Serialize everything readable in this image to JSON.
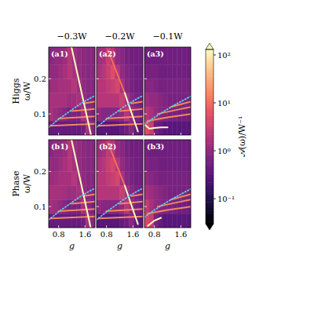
{
  "chart_data": [
    {
      "type": "heatmap",
      "label": "(a1)",
      "title": "−0.3W",
      "row_label": "Higgs",
      "ylabel": "ω/W",
      "tick_labels": "y",
      "xlim": [
        0.5,
        1.9
      ],
      "ylim": [
        0.04,
        0.29
      ],
      "xticks": [
        0.8,
        1.6
      ],
      "yticks": [
        0.1,
        0.2
      ],
      "x_edges": [
        0.5,
        0.64,
        0.78,
        0.92,
        1.06,
        1.2,
        1.34,
        1.48,
        1.62,
        1.76,
        1.9
      ],
      "y_edges": [
        0.04,
        0.08,
        0.12,
        0.16,
        0.2,
        0.24,
        0.29
      ],
      "cells": [
        [
          0.4,
          0.4,
          0.4,
          0.4,
          0.4,
          0.4,
          0.4,
          0.5,
          1.5,
          0.8
        ],
        [
          1.5,
          1.2,
          1,
          0.8,
          0.6,
          0.6,
          0.6,
          1.5,
          0.8,
          0.6
        ],
        [
          1.5,
          1.5,
          1.5,
          1.5,
          1.2,
          1.2,
          1.5,
          1,
          0.8,
          0.7
        ],
        [
          1.2,
          1.3,
          1.5,
          1.5,
          1.5,
          2,
          1.2,
          1,
          0.8,
          0.8
        ],
        [
          1,
          1,
          1.2,
          1.5,
          2,
          1.5,
          1,
          0.9,
          0.8,
          0.8
        ],
        [
          0.8,
          1,
          1,
          1.2,
          2,
          1.2,
          1,
          0.9,
          0.8,
          0.8
        ]
      ],
      "series": [
        {
          "type": "line",
          "color": "#f4875e",
          "x": [
            0.55,
            1.9
          ],
          "values": [
            0.066,
            0.072
          ]
        },
        {
          "type": "line",
          "color": "#f4875e",
          "x": [
            0.8,
            1.9
          ],
          "values": [
            0.087,
            0.093
          ]
        },
        {
          "type": "line",
          "color": "#f4875e",
          "x": [
            1.2,
            1.9
          ],
          "values": [
            0.108,
            0.114
          ]
        },
        {
          "type": "line",
          "color": "#f4875e",
          "x": [
            1.55,
            1.9
          ],
          "values": [
            0.13,
            0.135
          ]
        },
        {
          "type": "line",
          "color": "#fcfdbf",
          "x": [
            1.19,
            1.78
          ],
          "values": [
            0.29,
            0.04
          ]
        },
        {
          "type": "line",
          "color": "#5ad1e6",
          "line_style": "dotted",
          "x": [
            0.5,
            0.8,
            1.1,
            1.4,
            1.7,
            1.9
          ],
          "values": [
            0.062,
            0.085,
            0.105,
            0.125,
            0.142,
            0.152
          ]
        }
      ]
    },
    {
      "type": "heatmap",
      "label": "(a2)",
      "title": "−0.2W",
      "tick_labels": false,
      "xlim": [
        0.5,
        1.9
      ],
      "ylim": [
        0.04,
        0.29
      ],
      "xticks": [
        0.8,
        1.6
      ],
      "yticks": [
        0.1,
        0.2
      ],
      "x_edges": [
        0.5,
        0.64,
        0.78,
        0.92,
        1.06,
        1.2,
        1.34,
        1.48,
        1.62,
        1.76,
        1.9
      ],
      "y_edges": [
        0.04,
        0.08,
        0.12,
        0.16,
        0.2,
        0.24,
        0.29
      ],
      "cells": [
        [
          0.3,
          0.3,
          0.3,
          0.3,
          0.3,
          0.4,
          0.5,
          0.8,
          0.4,
          0.3
        ],
        [
          1,
          0.8,
          0.8,
          0.8,
          0.8,
          1,
          2,
          1,
          0.6,
          0.5
        ],
        [
          2,
          2,
          2,
          2,
          2,
          3,
          1.5,
          0.8,
          0.6,
          0.5
        ],
        [
          2,
          2,
          2.5,
          3,
          4,
          1.5,
          0.8,
          0.6,
          0.5,
          0.5
        ],
        [
          1.5,
          2,
          3,
          5,
          2,
          1,
          0.7,
          0.6,
          0.5,
          0.5
        ],
        [
          1.2,
          1.5,
          3,
          2,
          1,
          0.8,
          0.6,
          0.5,
          0.5,
          0.5
        ]
      ],
      "series": [
        {
          "type": "line",
          "color": "#f4875e",
          "x": [
            0.55,
            1.9
          ],
          "values": [
            0.066,
            0.072
          ]
        },
        {
          "type": "line",
          "color": "#f4875e",
          "x": [
            0.8,
            1.9
          ],
          "values": [
            0.087,
            0.093
          ]
        },
        {
          "type": "line",
          "color": "#f4875e",
          "x": [
            1.2,
            1.9
          ],
          "values": [
            0.108,
            0.114
          ]
        },
        {
          "type": "line",
          "color": "#f4875e",
          "x": [
            1.55,
            1.9
          ],
          "values": [
            0.13,
            0.135
          ]
        },
        {
          "type": "line",
          "color": "#f3705a",
          "x": [
            0.85,
            1.35
          ],
          "values": [
            0.28,
            0.16
          ]
        },
        {
          "type": "line",
          "color": "#fcfdbf",
          "x": [
            1.35,
            1.75
          ],
          "values": [
            0.16,
            0.05
          ]
        },
        {
          "type": "line",
          "color": "#5ad1e6",
          "line_style": "dotted",
          "x": [
            0.5,
            0.8,
            1.1,
            1.4,
            1.7,
            1.9
          ],
          "values": [
            0.062,
            0.085,
            0.105,
            0.125,
            0.142,
            0.152
          ]
        }
      ]
    },
    {
      "type": "heatmap",
      "label": "(a3)",
      "title": "−0.1W",
      "tick_labels": false,
      "xlim": [
        0.5,
        1.9
      ],
      "ylim": [
        0.04,
        0.29
      ],
      "xticks": [
        0.8,
        1.6
      ],
      "yticks": [
        0.1,
        0.2
      ],
      "x_edges": [
        0.5,
        0.64,
        0.78,
        0.92,
        1.06,
        1.2,
        1.34,
        1.48,
        1.62,
        1.76,
        1.9
      ],
      "y_edges": [
        0.04,
        0.08,
        0.12,
        0.16,
        0.2,
        0.24,
        0.29
      ],
      "cells": [
        [
          5,
          3,
          0.5,
          0.4,
          0.3,
          0.3,
          0.3,
          0.3,
          0.3,
          0.3
        ],
        [
          2,
          1.5,
          1,
          0.8,
          0.7,
          0.6,
          0.6,
          0.5,
          0.5,
          0.5
        ],
        [
          1.2,
          1,
          1,
          0.8,
          0.7,
          0.6,
          0.6,
          0.6,
          0.6,
          0.6
        ],
        [
          0.8,
          0.8,
          0.7,
          0.6,
          0.6,
          0.6,
          0.6,
          0.6,
          0.6,
          0.6
        ],
        [
          0.6,
          0.6,
          0.6,
          0.5,
          0.5,
          0.5,
          0.5,
          0.5,
          0.5,
          0.5
        ],
        [
          0.5,
          0.5,
          0.5,
          0.5,
          0.5,
          0.5,
          0.5,
          0.5,
          0.5,
          0.5
        ]
      ],
      "series": [
        {
          "type": "line",
          "color": "#f4875e",
          "x": [
            0.6,
            1.2,
            1.9
          ],
          "values": [
            0.08,
            0.09,
            0.1
          ]
        },
        {
          "type": "line",
          "color": "#f4875e",
          "x": [
            0.9,
            1.4,
            1.9
          ],
          "values": [
            0.1,
            0.11,
            0.12
          ]
        },
        {
          "type": "line",
          "color": "#f4875e",
          "x": [
            1.3,
            1.9
          ],
          "values": [
            0.12,
            0.135
          ]
        },
        {
          "type": "line",
          "color": "#fcfdbf",
          "x": [
            0.5,
            0.65,
            0.8,
            1.0,
            1.2
          ],
          "values": [
            0.07,
            0.058,
            0.06,
            0.062,
            0.062
          ]
        },
        {
          "type": "line",
          "color": "#5ad1e6",
          "line_style": "dotted",
          "x": [
            0.5,
            0.8,
            1.1,
            1.4,
            1.7,
            1.9
          ],
          "values": [
            0.07,
            0.09,
            0.108,
            0.125,
            0.14,
            0.15
          ]
        }
      ]
    },
    {
      "type": "heatmap",
      "label": "(b1)",
      "row_label": "Phase",
      "ylabel": "ω/W",
      "xlabel": "g",
      "xlim": [
        0.5,
        1.9
      ],
      "ylim": [
        0.04,
        0.29
      ],
      "xticks": [
        0.8,
        1.6
      ],
      "yticks": [
        0.1,
        0.2
      ],
      "x_edges": [
        0.5,
        0.64,
        0.78,
        0.92,
        1.06,
        1.2,
        1.34,
        1.48,
        1.62,
        1.76,
        1.9
      ],
      "y_edges": [
        0.04,
        0.08,
        0.12,
        0.16,
        0.2,
        0.24,
        0.29
      ],
      "cells": [
        [
          0.4,
          0.4,
          0.4,
          0.4,
          0.4,
          0.4,
          0.4,
          0.5,
          1.5,
          0.8
        ],
        [
          1.4,
          1.2,
          1,
          0.8,
          0.6,
          0.6,
          0.6,
          1.5,
          0.8,
          0.6
        ],
        [
          1.5,
          1.5,
          1.5,
          1.4,
          1.2,
          1.2,
          1.5,
          1,
          0.8,
          0.7
        ],
        [
          1.2,
          1.3,
          1.5,
          1.5,
          1.5,
          2,
          1.2,
          1,
          0.8,
          0.8
        ],
        [
          1,
          1,
          1.2,
          1.5,
          2,
          1.5,
          1,
          0.9,
          0.8,
          0.8
        ],
        [
          0.8,
          1,
          1,
          1.2,
          2,
          1.2,
          1,
          0.9,
          0.8,
          0.8
        ]
      ],
      "series": [
        {
          "type": "line",
          "color": "#f4875e",
          "x": [
            0.55,
            1.9
          ],
          "values": [
            0.066,
            0.072
          ]
        },
        {
          "type": "line",
          "color": "#f4875e",
          "x": [
            0.8,
            1.9
          ],
          "values": [
            0.087,
            0.093
          ]
        },
        {
          "type": "line",
          "color": "#f4875e",
          "x": [
            1.2,
            1.9
          ],
          "values": [
            0.108,
            0.114
          ]
        },
        {
          "type": "line",
          "color": "#f4875e",
          "x": [
            1.55,
            1.9
          ],
          "values": [
            0.13,
            0.135
          ]
        },
        {
          "type": "line",
          "color": "#fcfdbf",
          "x": [
            1.19,
            1.77
          ],
          "values": [
            0.29,
            0.04
          ]
        },
        {
          "type": "line",
          "color": "#5ad1e6",
          "line_style": "dotted",
          "x": [
            0.5,
            0.8,
            1.1,
            1.4,
            1.7,
            1.9
          ],
          "values": [
            0.062,
            0.085,
            0.105,
            0.125,
            0.142,
            0.152
          ]
        }
      ]
    },
    {
      "type": "heatmap",
      "label": "(b2)",
      "xlabel": "g",
      "tick_labels": "x",
      "xlim": [
        0.5,
        1.9
      ],
      "ylim": [
        0.04,
        0.29
      ],
      "xticks": [
        0.8,
        1.6
      ],
      "yticks": [
        0.1,
        0.2
      ],
      "x_edges": [
        0.5,
        0.64,
        0.78,
        0.92,
        1.06,
        1.2,
        1.34,
        1.48,
        1.62,
        1.76,
        1.9
      ],
      "y_edges": [
        0.04,
        0.08,
        0.12,
        0.16,
        0.2,
        0.24,
        0.29
      ],
      "cells": [
        [
          0.3,
          0.3,
          0.3,
          0.3,
          0.3,
          0.4,
          0.5,
          0.8,
          0.4,
          0.3
        ],
        [
          1,
          0.8,
          0.8,
          0.8,
          0.8,
          1,
          2,
          1,
          0.6,
          0.5
        ],
        [
          2,
          2,
          2,
          2,
          2,
          3,
          1.5,
          0.8,
          0.6,
          0.5
        ],
        [
          2,
          2,
          2.5,
          3,
          4,
          1.5,
          0.8,
          0.6,
          0.5,
          0.5
        ],
        [
          1.5,
          2,
          3,
          4,
          2,
          1,
          0.7,
          0.6,
          0.5,
          0.5
        ],
        [
          1.2,
          1.5,
          2.5,
          2,
          1,
          0.8,
          0.6,
          0.5,
          0.5,
          0.5
        ]
      ],
      "series": [
        {
          "type": "line",
          "color": "#f4875e",
          "x": [
            0.55,
            1.9
          ],
          "values": [
            0.066,
            0.072
          ]
        },
        {
          "type": "line",
          "color": "#f4875e",
          "x": [
            0.8,
            1.9
          ],
          "values": [
            0.087,
            0.093
          ]
        },
        {
          "type": "line",
          "color": "#f4875e",
          "x": [
            1.2,
            1.9
          ],
          "values": [
            0.108,
            0.114
          ]
        },
        {
          "type": "line",
          "color": "#f4875e",
          "x": [
            1.55,
            1.9
          ],
          "values": [
            0.13,
            0.135
          ]
        },
        {
          "type": "line",
          "color": "#f3705a",
          "x": [
            0.85,
            1.35
          ],
          "values": [
            0.28,
            0.16
          ]
        },
        {
          "type": "line",
          "color": "#fcfdbf",
          "x": [
            1.35,
            1.75
          ],
          "values": [
            0.16,
            0.05
          ]
        },
        {
          "type": "line",
          "color": "#5ad1e6",
          "line_style": "dotted",
          "x": [
            0.5,
            0.8,
            1.1,
            1.4,
            1.7,
            1.9
          ],
          "values": [
            0.062,
            0.085,
            0.105,
            0.125,
            0.142,
            0.152
          ]
        }
      ]
    },
    {
      "type": "heatmap",
      "label": "(b3)",
      "xlabel": "g",
      "tick_labels": "x",
      "xlim": [
        0.5,
        1.9
      ],
      "ylim": [
        0.04,
        0.29
      ],
      "xticks": [
        0.8,
        1.6
      ],
      "yticks": [
        0.1,
        0.2
      ],
      "x_edges": [
        0.5,
        0.64,
        0.78,
        0.92,
        1.06,
        1.2,
        1.34,
        1.48,
        1.62,
        1.76,
        1.9
      ],
      "y_edges": [
        0.04,
        0.08,
        0.12,
        0.16,
        0.2,
        0.24,
        0.29
      ],
      "cells": [
        [
          4,
          3,
          0.6,
          0.4,
          0.3,
          0.3,
          0.3,
          0.3,
          0.3,
          0.3
        ],
        [
          2.5,
          1.5,
          1,
          0.8,
          0.7,
          0.6,
          0.6,
          0.5,
          0.5,
          0.5
        ],
        [
          1.5,
          1.2,
          1,
          0.8,
          0.7,
          0.6,
          0.6,
          0.6,
          0.6,
          0.6
        ],
        [
          1,
          0.8,
          0.7,
          0.6,
          0.6,
          0.6,
          0.6,
          0.6,
          0.6,
          0.6
        ],
        [
          0.7,
          0.6,
          0.6,
          0.5,
          0.5,
          0.5,
          0.5,
          0.5,
          0.5,
          0.5
        ],
        [
          0.6,
          0.5,
          0.5,
          0.5,
          0.5,
          0.5,
          0.5,
          0.5,
          0.5,
          0.5
        ]
      ],
      "series": [
        {
          "type": "line",
          "color": "#f4875e",
          "x": [
            0.6,
            1.2,
            1.9
          ],
          "values": [
            0.08,
            0.09,
            0.1
          ]
        },
        {
          "type": "line",
          "color": "#f4875e",
          "x": [
            0.9,
            1.4,
            1.9
          ],
          "values": [
            0.1,
            0.11,
            0.12
          ]
        },
        {
          "type": "line",
          "color": "#f4875e",
          "x": [
            1.3,
            1.9
          ],
          "values": [
            0.12,
            0.135
          ]
        },
        {
          "type": "line",
          "color": "#fcfdbf",
          "x": [
            0.6,
            0.8,
            1.0
          ],
          "values": [
            0.045,
            0.06,
            0.068
          ]
        },
        {
          "type": "line",
          "color": "#5ad1e6",
          "line_style": "dotted",
          "x": [
            0.5,
            0.8,
            1.1,
            1.4,
            1.7,
            1.9
          ],
          "values": [
            0.07,
            0.09,
            0.108,
            0.125,
            0.14,
            0.15
          ]
        }
      ]
    },
    {
      "type": "colorbar",
      "label": "𝒜(ω)/W⁻¹",
      "log": true,
      "clim": [
        0.03,
        130
      ],
      "ticks": [
        {
          "value": 0.1,
          "label": "10⁻¹"
        },
        {
          "value": 1,
          "label": "10⁰"
        },
        {
          "value": 10,
          "label": "10¹"
        },
        {
          "value": 100,
          "label": "10²"
        }
      ]
    }
  ]
}
